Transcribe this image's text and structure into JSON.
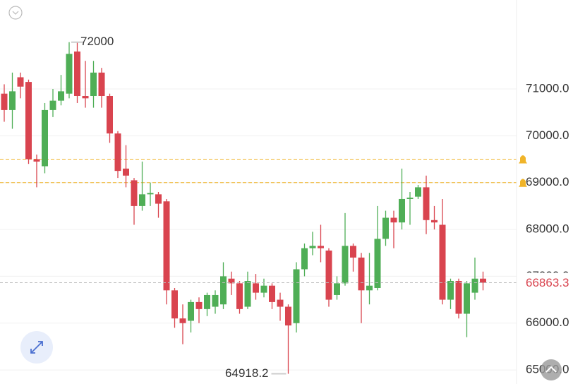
{
  "chart_data": {
    "type": "candlestick",
    "open": [
      70900,
      70550,
      71250,
      71150,
      69500,
      69350,
      70550,
      70750,
      70900,
      71800,
      70850,
      70850,
      71350,
      70850,
      70050,
      69300,
      69050,
      68500,
      68750,
      68750,
      68600,
      66700,
      66100,
      66050,
      66450,
      66300,
      66350,
      66400,
      66950,
      66850,
      66350,
      66850,
      66650,
      66800,
      66500,
      66350,
      66000,
      67150,
      67600,
      67650,
      67550,
      66600,
      66850,
      67650,
      67400,
      66700,
      66750,
      67800,
      68250,
      68150,
      68650,
      68700,
      68900,
      68200,
      68100,
      66500,
      66900,
      66200,
      66650,
      66950
    ],
    "high": [
      71100,
      71350,
      71350,
      71200,
      69600,
      70700,
      71000,
      71300,
      72000,
      71999.9,
      71600,
      71600,
      71450,
      70900,
      70100,
      69800,
      69100,
      69450,
      69000,
      68800,
      68650,
      66750,
      66400,
      66500,
      66550,
      66650,
      66700,
      67300,
      67100,
      66900,
      67100,
      67050,
      66950,
      66850,
      66650,
      66400,
      67300,
      67700,
      67950,
      68100,
      67600,
      67000,
      68350,
      67700,
      67500,
      67500,
      68500,
      68400,
      68400,
      69300,
      68800,
      68950,
      69150,
      68500,
      68650,
      66950,
      66950,
      66900,
      67400,
      67100
    ],
    "low": [
      70300,
      70150,
      70800,
      69400,
      68900,
      69200,
      70400,
      70650,
      70800,
      70700,
      70600,
      70600,
      70600,
      69850,
      69100,
      68900,
      68100,
      68400,
      68500,
      68250,
      66400,
      65900,
      65550,
      65800,
      66000,
      66150,
      66200,
      66300,
      66600,
      66200,
      66300,
      66500,
      66550,
      66300,
      66050,
      64918.2,
      65800,
      67000,
      67450,
      67300,
      66350,
      66500,
      66800,
      67100,
      66000,
      66400,
      66700,
      67650,
      67600,
      68000,
      68100,
      68650,
      67900,
      68000,
      66400,
      66300,
      66100,
      65700,
      66500,
      66700
    ],
    "close": [
      70550,
      70950,
      71050,
      69500,
      69450,
      70550,
      70750,
      70950,
      71750,
      70850,
      70800,
      71350,
      70850,
      70050,
      69250,
      69150,
      68500,
      68750,
      68780,
      68550,
      66700,
      66100,
      66000,
      66450,
      66300,
      66600,
      66600,
      67000,
      66850,
      66300,
      66900,
      66650,
      66800,
      66450,
      66350,
      65950,
      67150,
      67600,
      67650,
      67600,
      66500,
      66850,
      67650,
      67400,
      66700,
      66800,
      67800,
      68250,
      68150,
      68650,
      68680,
      68900,
      68200,
      68150,
      66500,
      66900,
      66200,
      66850,
      66950,
      66863.3
    ],
    "up_color": "#4fae56",
    "down_color": "#d9444f",
    "ylim": [
      64700,
      72900
    ],
    "yticks": [
      {
        "value": 65000,
        "label": "65000.0"
      },
      {
        "value": 66000,
        "label": "66000.0"
      },
      {
        "value": 67000,
        "label": "67000.0"
      },
      {
        "value": 68000,
        "label": "68000.0"
      },
      {
        "value": 69000,
        "label": "69000.0"
      },
      {
        "value": 70000,
        "label": "70000.0"
      },
      {
        "value": 71000,
        "label": "71000.0"
      }
    ],
    "grid": true,
    "alerts": [
      69500,
      69000
    ],
    "alert_color": "#f0b429",
    "last_price": 66863.3
  }
}
